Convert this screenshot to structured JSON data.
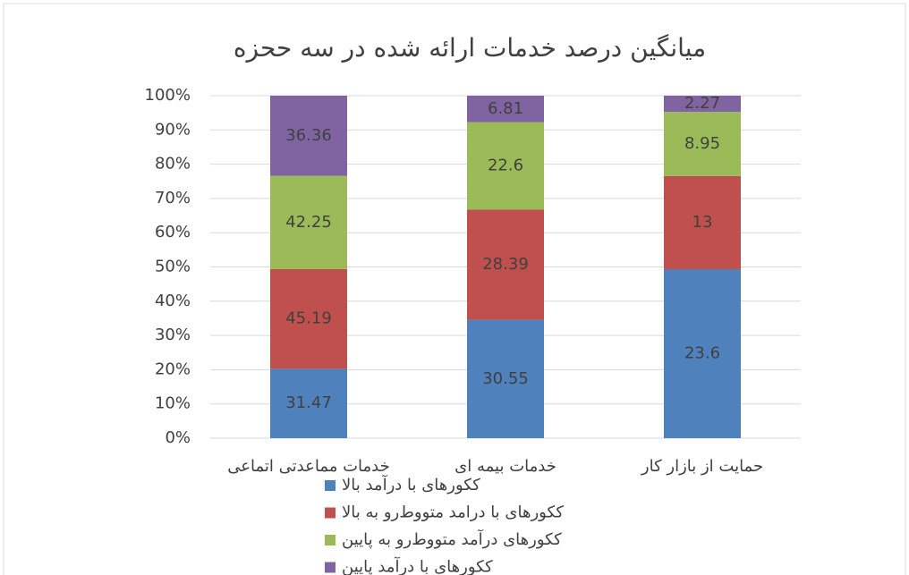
{
  "chart_data": {
    "type": "stacked_percent_bar",
    "title": "میانگین درصد خدمات ارائه شده در سه ححزه",
    "categories": [
      "خدمات مماعدتی اتماعی",
      "خدمات بیمه ای",
      "حمایت از بازار کار"
    ],
    "series": [
      {
        "name": "ککورهای با درآمد بالا",
        "color": "#4f81bd",
        "values": [
          31.47,
          30.55,
          23.6
        ]
      },
      {
        "name": "ککورهای با درامد متووط‌رو به بالا",
        "color": "#c0504d",
        "values": [
          45.19,
          28.39,
          13
        ]
      },
      {
        "name": "ککورهای درآمد متووط‌رو به پایین",
        "color": "#9bbb59",
        "values": [
          42.25,
          22.6,
          8.95
        ]
      },
      {
        "name": "ککورهای با درآمد پایین",
        "color": "#8064a2",
        "values": [
          36.36,
          6.81,
          2.27
        ]
      }
    ],
    "ylim": [
      0,
      100
    ],
    "yticks": [
      {
        "value": 0,
        "label": "0%"
      },
      {
        "value": 10,
        "label": "10%"
      },
      {
        "value": 20,
        "label": "20%"
      },
      {
        "value": 30,
        "label": "30%"
      },
      {
        "value": 40,
        "label": "40%"
      },
      {
        "value": 50,
        "label": "50%"
      },
      {
        "value": 60,
        "label": "60%"
      },
      {
        "value": 70,
        "label": "70%"
      },
      {
        "value": 80,
        "label": "80%"
      },
      {
        "value": 90,
        "label": "90%"
      },
      {
        "value": 100,
        "label": "100%"
      }
    ],
    "grid": true,
    "legend": "bottom"
  }
}
